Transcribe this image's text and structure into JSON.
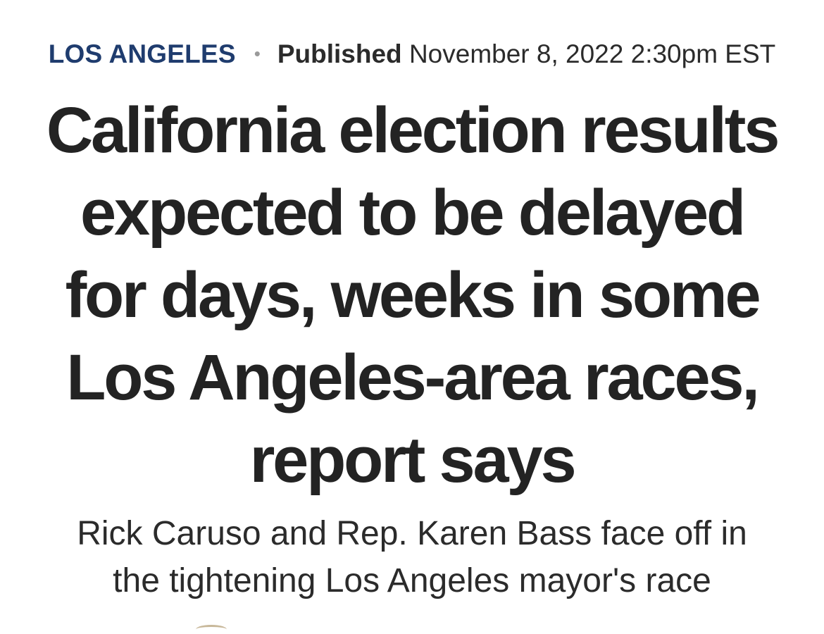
{
  "article": {
    "section": "LOS ANGELES",
    "separator": "•",
    "published_label": "Published",
    "published_date": "November 8, 2022 2:30pm EST",
    "headline_lines": [
      "California election results",
      "expected to be delayed",
      "for days, weeks in some",
      "Los Angeles-area races,",
      "report says"
    ],
    "subhead_lines": [
      "Rick Caruso and Rep. Karen Bass face off in",
      "the tightening Los Angeles mayor's race"
    ]
  },
  "colors": {
    "section": "#1f3c6e",
    "headline": "#232323",
    "text": "#2b2b2b",
    "background": "#ffffff"
  }
}
